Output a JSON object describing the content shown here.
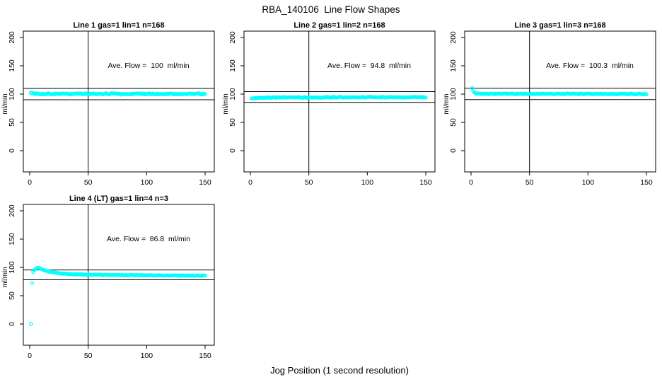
{
  "title": "RBA_140106  Line Flow Shapes",
  "xlabel": "Jog Position (1 second resolution)",
  "colors": {
    "points": "#00FFFF",
    "axis": "#000000",
    "background": "#FFFFFF"
  },
  "chart_data": [
    {
      "type": "scatter",
      "title": "Line 1 gas=1 lin=1 n=168",
      "annotation": "Ave. Flow =  100  ml/min",
      "ave_flow_ml_min": 100,
      "n": 168,
      "ylabel": "ml/min",
      "x_ticks": [
        0,
        50,
        100,
        150
      ],
      "y_ticks": [
        0,
        50,
        100,
        150,
        200
      ],
      "xlim": [
        0,
        150
      ],
      "ylim": [
        0,
        200
      ],
      "vline_x": 50,
      "hlines": [
        110,
        90
      ],
      "points_profile": {
        "x_start": 1,
        "x_end": 150,
        "step": 1,
        "keypoints": [
          [
            1,
            102.5
          ],
          [
            3,
            101
          ],
          [
            8,
            100.6
          ],
          [
            150,
            100.2
          ]
        ],
        "noise": 1.5,
        "seed": 101
      }
    },
    {
      "type": "scatter",
      "title": "Line 2 gas=1 lin=2 n=168",
      "annotation": "Ave. Flow =  94.8  ml/min",
      "ave_flow_ml_min": 94.8,
      "n": 168,
      "ylabel": "ml/min",
      "x_ticks": [
        0,
        50,
        100,
        150
      ],
      "y_ticks": [
        0,
        50,
        100,
        150,
        200
      ],
      "xlim": [
        0,
        150
      ],
      "ylim": [
        0,
        200
      ],
      "vline_x": 50,
      "hlines": [
        104.3,
        85.3
      ],
      "points_profile": {
        "x_start": 1,
        "x_end": 150,
        "step": 1,
        "keypoints": [
          [
            1,
            92.2
          ],
          [
            4,
            93.2
          ],
          [
            20,
            93.9
          ],
          [
            150,
            94.6
          ]
        ],
        "noise": 1.0,
        "seed": 202
      }
    },
    {
      "type": "scatter",
      "title": "Line 3 gas=1 lin=3 n=168",
      "annotation": "Ave. Flow =  100.3  ml/min",
      "ave_flow_ml_min": 100.3,
      "n": 168,
      "ylabel": "ml/min",
      "x_ticks": [
        0,
        50,
        100,
        150
      ],
      "y_ticks": [
        0,
        50,
        100,
        150,
        200
      ],
      "xlim": [
        0,
        150
      ],
      "ylim": [
        0,
        200
      ],
      "vline_x": 50,
      "hlines": [
        110.3,
        90.3
      ],
      "points_profile": {
        "x_start": 1,
        "x_end": 150,
        "step": 1,
        "keypoints": [
          [
            1,
            110
          ],
          [
            2,
            105
          ],
          [
            3,
            102.7
          ],
          [
            5,
            101.2
          ],
          [
            9,
            100.5
          ],
          [
            150,
            100.2
          ]
        ],
        "noise": 0.8,
        "seed": 303
      }
    },
    {
      "type": "scatter",
      "title": "Line 4 (LT) gas=1 lin=4 n=3",
      "annotation": "Ave. Flow =  86.8  ml/min",
      "ave_flow_ml_min": 86.8,
      "n": 3,
      "ylabel": "ml/min",
      "x_ticks": [
        0,
        50,
        100,
        150
      ],
      "y_ticks": [
        0,
        50,
        100,
        150,
        200
      ],
      "xlim": [
        0,
        150
      ],
      "ylim": [
        0,
        200
      ],
      "vline_x": 50,
      "hlines": [
        95.5,
        78.1
      ],
      "points_profile": {
        "x_start": 1,
        "x_end": 150,
        "step": 1,
        "keypoints": [
          [
            1,
            0
          ],
          [
            2,
            73
          ],
          [
            3,
            92
          ],
          [
            4,
            95.5
          ],
          [
            5,
            97.5
          ],
          [
            6,
            98.8
          ],
          [
            7,
            99.2
          ],
          [
            8,
            98.6
          ],
          [
            10,
            97
          ],
          [
            13,
            94.6
          ],
          [
            16,
            92.8
          ],
          [
            20,
            91
          ],
          [
            25,
            89.7
          ],
          [
            30,
            88.8
          ],
          [
            40,
            87.8
          ],
          [
            50,
            87.2
          ],
          [
            70,
            86.5
          ],
          [
            100,
            86
          ],
          [
            150,
            85.4
          ]
        ],
        "noise": 0.7,
        "seed": 404
      }
    }
  ]
}
